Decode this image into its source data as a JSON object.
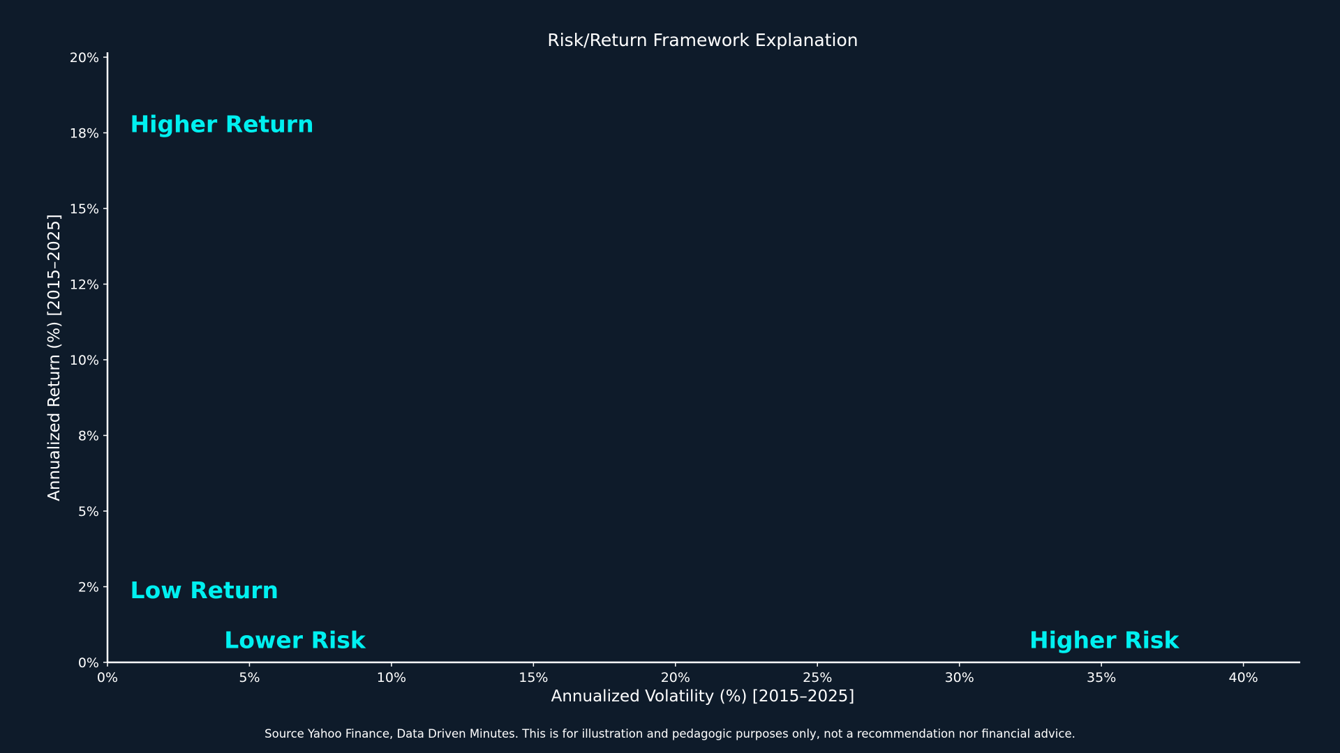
{
  "chart_data": {
    "type": "scatter",
    "title": "Risk/Return Framework Explanation",
    "xlabel": "Annualized Volatility (%) [2015–2025]",
    "ylabel": "Annualized Return (%) [2015–2025]",
    "xlim": [
      0,
      42
    ],
    "ylim": [
      0,
      20
    ],
    "x_ticks": [
      0,
      5,
      10,
      15,
      20,
      25,
      30,
      35,
      40
    ],
    "x_tick_labels": [
      "0%",
      "5%",
      "10%",
      "15%",
      "20%",
      "25%",
      "30%",
      "35%",
      "40%"
    ],
    "y_ticks": [
      0,
      2.5,
      5,
      7.5,
      10,
      12.5,
      15,
      17.5,
      20
    ],
    "y_tick_labels": [
      "0%",
      "2%",
      "5%",
      "8%",
      "10%",
      "12%",
      "15%",
      "18%",
      "20%"
    ],
    "grid": false,
    "series": [],
    "annotations": [
      {
        "text": "Higher Return",
        "x": 0.8,
        "y": 17.8,
        "anchor": "start"
      },
      {
        "text": "Low Return",
        "x": 0.8,
        "y": 2.4,
        "anchor": "start"
      },
      {
        "text": "Lower Risk",
        "x": 6.6,
        "y": 0.75,
        "anchor": "middle"
      },
      {
        "text": "Higher Risk",
        "x": 35.1,
        "y": 0.75,
        "anchor": "middle"
      }
    ],
    "colors": {
      "background": "#0e1b2a",
      "text": "#ffffff",
      "annotation": "#00f0f0",
      "axis": "#ffffff"
    }
  },
  "footnote": "Source Yahoo Finance, Data Driven Minutes. This is for illustration and pedagogic purposes only, not a recommendation nor financial advice."
}
